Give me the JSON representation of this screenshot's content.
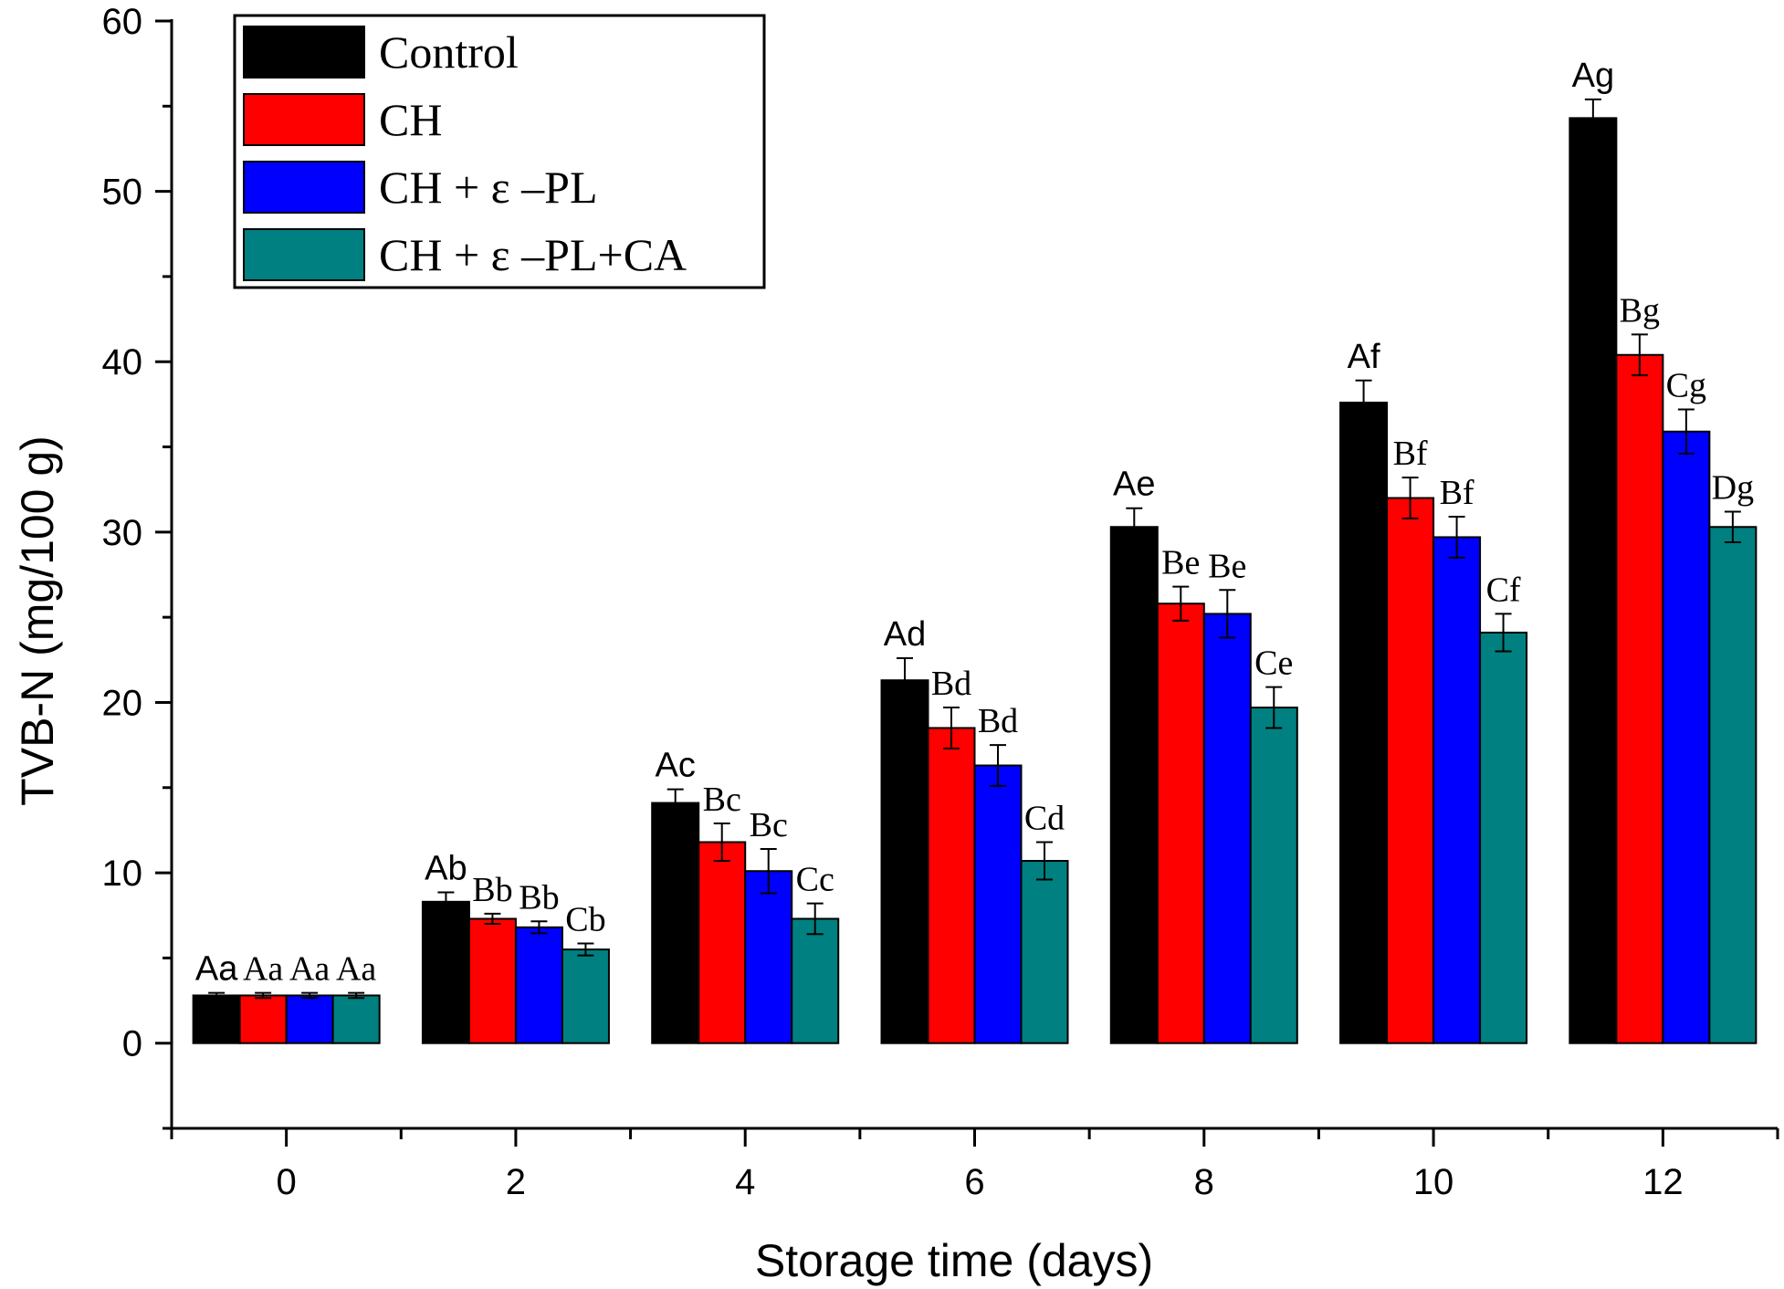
{
  "chart_data": {
    "type": "bar",
    "xlabel": "Storage time (days)",
    "ylabel": "TVB-N (mg/100 g)",
    "categories": [
      "0",
      "2",
      "4",
      "6",
      "8",
      "10",
      "12"
    ],
    "ylim": [
      -5,
      60
    ],
    "yticks": [
      "0",
      "10",
      "20",
      "30",
      "40",
      "50",
      "60"
    ],
    "grid": false,
    "legend_position": "top-left",
    "series": [
      {
        "name": "Control",
        "color": "#000000",
        "values": [
          2.8,
          8.3,
          14.1,
          21.3,
          30.3,
          37.6,
          54.3
        ],
        "errors": [
          0.15,
          0.55,
          0.8,
          1.3,
          1.1,
          1.3,
          1.1
        ],
        "labels": [
          "Aa",
          "Ab",
          "Ac",
          "Ad",
          "Ae",
          "Af",
          "Ag"
        ]
      },
      {
        "name": "CH",
        "color": "#ff0000",
        "values": [
          2.8,
          7.3,
          11.8,
          18.5,
          25.8,
          32.0,
          40.4
        ],
        "errors": [
          0.15,
          0.3,
          1.1,
          1.2,
          1.0,
          1.2,
          1.2
        ],
        "labels": [
          "Aa",
          "Bb",
          "Bc",
          "Bd",
          "Be",
          "Bf",
          "Bg"
        ]
      },
      {
        "name": "CH + ε –PL",
        "color": "#0000ff",
        "values": [
          2.8,
          6.8,
          10.1,
          16.3,
          25.2,
          29.7,
          35.9
        ],
        "errors": [
          0.15,
          0.35,
          1.3,
          1.2,
          1.4,
          1.2,
          1.3
        ],
        "labels": [
          "Aa",
          "Bb",
          "Bc",
          "Bd",
          "Be",
          "Bf",
          "Cg"
        ]
      },
      {
        "name": "CH + ε –PL+CA",
        "color": "#008080",
        "values": [
          2.8,
          5.5,
          7.3,
          10.7,
          19.7,
          24.1,
          30.3
        ],
        "errors": [
          0.15,
          0.35,
          0.9,
          1.1,
          1.2,
          1.1,
          0.9
        ],
        "labels": [
          "Aa",
          "Cb",
          "Cc",
          "Cd",
          "Ce",
          "Cf",
          "Dg"
        ]
      }
    ]
  }
}
